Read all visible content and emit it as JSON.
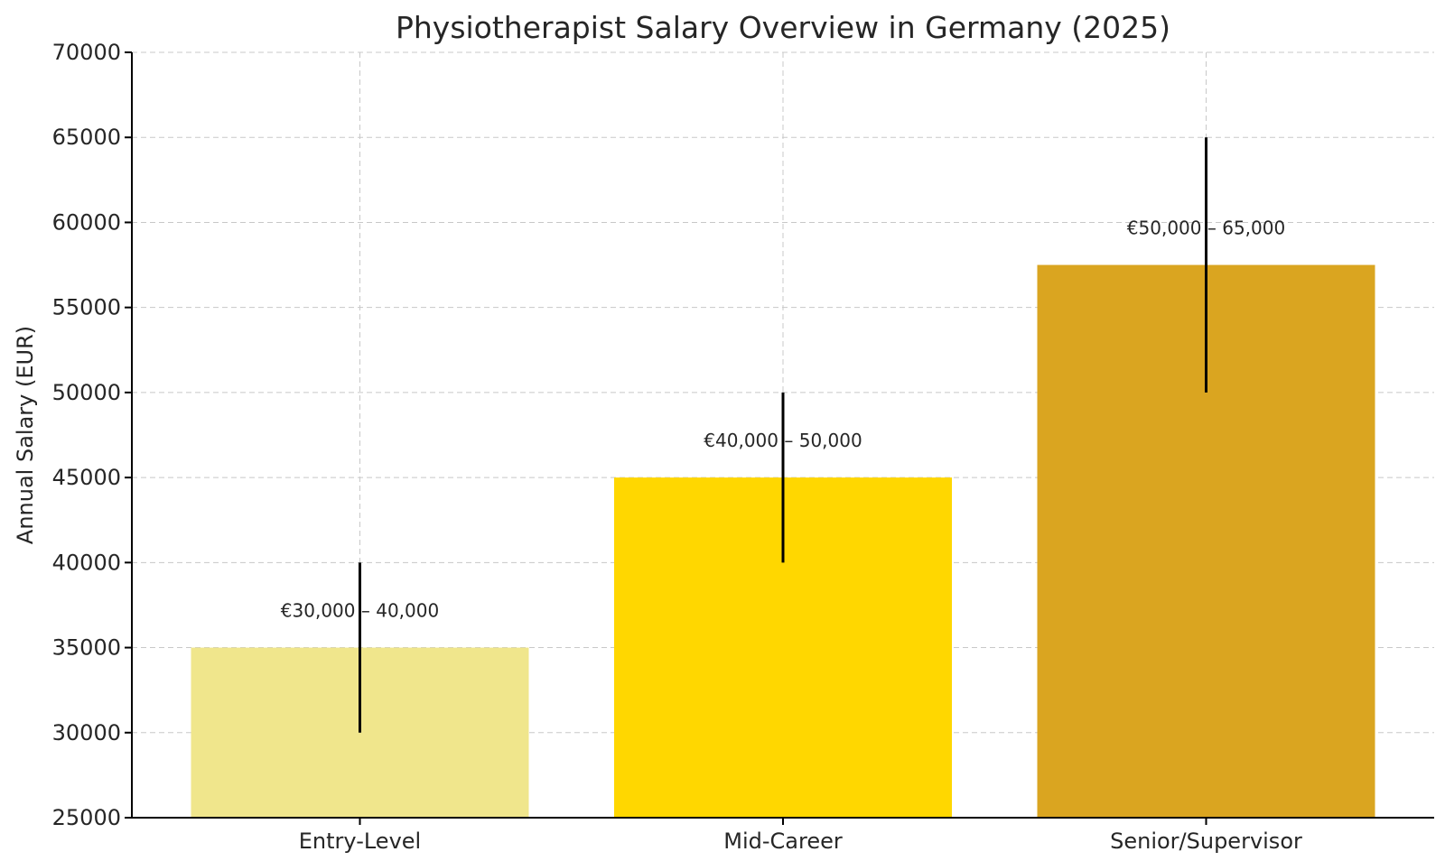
{
  "chart_data": {
    "type": "bar",
    "title": "Physiotherapist Salary Overview in Germany (2025)",
    "xlabel": "",
    "ylabel": "Annual Salary (EUR)",
    "ylim": [
      25000,
      70000
    ],
    "yticks": [
      25000,
      30000,
      35000,
      40000,
      45000,
      50000,
      55000,
      60000,
      65000,
      70000
    ],
    "categories": [
      "Entry-Level",
      "Mid-Career",
      "Senior/Supervisor"
    ],
    "values": [
      35000,
      45000,
      57500
    ],
    "error_low": [
      30000,
      40000,
      50000
    ],
    "error_high": [
      40000,
      50000,
      65000
    ],
    "data_labels": [
      "€30,000 – 40,000",
      "€40,000 – 50,000",
      "€50,000 – 65,000"
    ],
    "colors": [
      "#f0e68c",
      "#ffd700",
      "#daa520"
    ],
    "grid": true
  }
}
